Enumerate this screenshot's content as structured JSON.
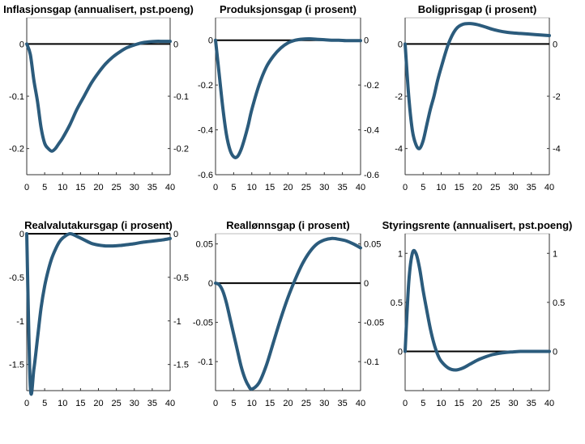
{
  "chart_data": [
    {
      "type": "line",
      "title": "Inflasjonsgap (annualisert, pst.poeng)",
      "x": [
        0,
        1,
        2,
        3,
        4,
        5,
        6,
        7,
        8,
        9,
        10,
        12,
        14,
        16,
        18,
        20,
        22,
        24,
        26,
        28,
        30,
        32,
        34,
        36,
        38,
        40
      ],
      "values": [
        0,
        -0.02,
        -0.07,
        -0.11,
        -0.16,
        -0.19,
        -0.2,
        -0.205,
        -0.2,
        -0.19,
        -0.18,
        -0.155,
        -0.125,
        -0.1,
        -0.075,
        -0.055,
        -0.038,
        -0.025,
        -0.015,
        -0.007,
        -0.002,
        0.002,
        0.004,
        0.005,
        0.005,
        0.005
      ],
      "xlim": [
        0,
        40
      ],
      "ylim": [
        -0.25,
        0.05
      ],
      "xticks": [
        "0",
        "5",
        "10",
        "15",
        "20",
        "25",
        "30",
        "35",
        "40"
      ],
      "yticks": [
        {
          "v": 0,
          "label": "0"
        },
        {
          "v": -0.1,
          "label": "-0.1"
        },
        {
          "v": -0.2,
          "label": "-0.2"
        }
      ],
      "zero_line": true,
      "grid": false
    },
    {
      "type": "line",
      "title": "Produksjonsgap (i prosent)",
      "x": [
        0,
        1,
        2,
        3,
        4,
        5,
        6,
        7,
        8,
        9,
        10,
        12,
        14,
        16,
        18,
        20,
        22,
        24,
        26,
        28,
        30,
        32,
        34,
        36,
        38,
        40
      ],
      "values": [
        0,
        -0.15,
        -0.3,
        -0.42,
        -0.49,
        -0.52,
        -0.52,
        -0.49,
        -0.44,
        -0.38,
        -0.31,
        -0.2,
        -0.12,
        -0.07,
        -0.035,
        -0.012,
        0,
        0.005,
        0.006,
        0.004,
        0.002,
        0,
        0,
        -0.002,
        -0.002,
        -0.002
      ],
      "xlim": [
        0,
        40
      ],
      "ylim": [
        -0.6,
        0.1
      ],
      "xticks": [
        "0",
        "5",
        "10",
        "15",
        "20",
        "25",
        "30",
        "35",
        "40"
      ],
      "yticks": [
        {
          "v": 0,
          "label": "0"
        },
        {
          "v": -0.2,
          "label": "-0.2"
        },
        {
          "v": -0.4,
          "label": "-0.4"
        },
        {
          "v": -0.6,
          "label": "-0.6"
        }
      ],
      "zero_line": true,
      "grid": false
    },
    {
      "type": "line",
      "title": "Boligprisgap (i prosent)",
      "x": [
        0,
        1,
        2,
        3,
        4,
        5,
        6,
        7,
        8,
        9,
        10,
        12,
        14,
        16,
        18,
        20,
        22,
        24,
        26,
        28,
        30,
        32,
        34,
        36,
        38,
        40
      ],
      "values": [
        0,
        -2.0,
        -3.3,
        -3.85,
        -4.0,
        -3.7,
        -3.1,
        -2.5,
        -2.0,
        -1.4,
        -0.9,
        0,
        0.55,
        0.75,
        0.78,
        0.74,
        0.66,
        0.57,
        0.5,
        0.45,
        0.42,
        0.4,
        0.38,
        0.36,
        0.34,
        0.32
      ],
      "xlim": [
        0,
        40
      ],
      "ylim": [
        -5,
        1
      ],
      "xticks": [
        "0",
        "5",
        "10",
        "15",
        "20",
        "25",
        "30",
        "35",
        "40"
      ],
      "yticks": [
        {
          "v": 0,
          "label": "0"
        },
        {
          "v": -2,
          "label": "-2"
        },
        {
          "v": -4,
          "label": "-4"
        }
      ],
      "zero_line": true,
      "grid": false
    },
    {
      "type": "line",
      "title": "Realvalutakursgap (i prosent)",
      "x": [
        0,
        1,
        2,
        3,
        4,
        5,
        6,
        7,
        8,
        9,
        10,
        12,
        14,
        16,
        18,
        20,
        22,
        24,
        26,
        28,
        30,
        32,
        34,
        36,
        38,
        40
      ],
      "values": [
        0,
        -1.75,
        -1.55,
        -1.2,
        -0.85,
        -0.6,
        -0.42,
        -0.28,
        -0.18,
        -0.1,
        -0.05,
        0,
        -0.03,
        -0.07,
        -0.11,
        -0.13,
        -0.14,
        -0.14,
        -0.135,
        -0.125,
        -0.115,
        -0.1,
        -0.09,
        -0.08,
        -0.07,
        -0.055
      ],
      "xlim": [
        0,
        40
      ],
      "ylim": [
        -1.8,
        0
      ],
      "xticks": [
        "0",
        "5",
        "10",
        "15",
        "20",
        "25",
        "30",
        "35",
        "40"
      ],
      "yticks": [
        {
          "v": 0,
          "label": "0"
        },
        {
          "v": -0.5,
          "label": "-0.5"
        },
        {
          "v": -1,
          "label": "-1"
        },
        {
          "v": -1.5,
          "label": "-1.5"
        }
      ],
      "zero_line": true,
      "grid": false
    },
    {
      "type": "line",
      "title": "Reallønnsgap (i prosent)",
      "x": [
        0,
        1,
        2,
        3,
        4,
        5,
        6,
        7,
        8,
        9,
        10,
        12,
        14,
        16,
        18,
        20,
        22,
        24,
        26,
        28,
        30,
        32,
        34,
        36,
        38,
        40
      ],
      "values": [
        0,
        -0.002,
        -0.01,
        -0.025,
        -0.045,
        -0.065,
        -0.085,
        -0.105,
        -0.12,
        -0.13,
        -0.135,
        -0.127,
        -0.105,
        -0.075,
        -0.045,
        -0.018,
        0.005,
        0.025,
        0.04,
        0.05,
        0.055,
        0.057,
        0.056,
        0.054,
        0.05,
        0.045
      ],
      "xlim": [
        0,
        40
      ],
      "ylim": [
        -0.137,
        0.063
      ],
      "xticks": [
        "0",
        "5",
        "10",
        "15",
        "20",
        "25",
        "30",
        "35",
        "40"
      ],
      "yticks": [
        {
          "v": 0.05,
          "label": "0.05"
        },
        {
          "v": 0,
          "label": "0"
        },
        {
          "v": -0.05,
          "label": "-0.05"
        },
        {
          "v": -0.1,
          "label": "-0.1"
        }
      ],
      "zero_line": true,
      "grid": false
    },
    {
      "type": "line",
      "title": "Styringsrente (annualisert, pst.poeng)",
      "x": [
        0,
        1,
        2,
        3,
        4,
        5,
        6,
        7,
        8,
        9,
        10,
        12,
        14,
        16,
        18,
        20,
        22,
        24,
        26,
        28,
        30,
        32,
        34,
        36,
        38,
        40
      ],
      "values": [
        0,
        0.7,
        1.0,
        1.0,
        0.85,
        0.62,
        0.42,
        0.23,
        0.08,
        -0.03,
        -0.1,
        -0.17,
        -0.19,
        -0.17,
        -0.13,
        -0.09,
        -0.06,
        -0.035,
        -0.02,
        -0.01,
        -0.005,
        0,
        0,
        0,
        0,
        0
      ],
      "xlim": [
        0,
        40
      ],
      "ylim": [
        -0.4,
        1.2
      ],
      "xticks": [
        "0",
        "5",
        "10",
        "15",
        "20",
        "25",
        "30",
        "35",
        "40"
      ],
      "yticks": [
        {
          "v": 1,
          "label": "1"
        },
        {
          "v": 0.5,
          "label": "0.5"
        },
        {
          "v": 0,
          "label": "0"
        }
      ],
      "zero_line": true,
      "grid": false
    }
  ],
  "colors": {
    "series": "#2b5b7c",
    "zero_line": "#000000",
    "axis": "#333333"
  }
}
